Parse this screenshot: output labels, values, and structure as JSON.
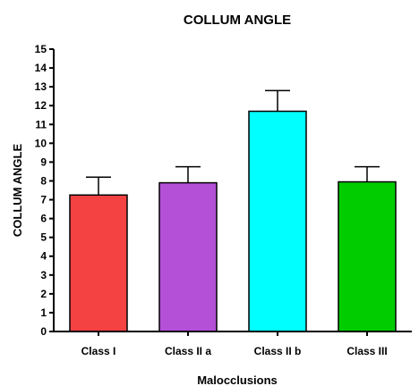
{
  "chart_data": {
    "type": "bar",
    "title": "COLLUM ANGLE",
    "xlabel": "Malocclusions",
    "ylabel": "COLLUM ANGLE",
    "ylim": [
      0,
      15
    ],
    "yticks": [
      0,
      1,
      2,
      3,
      4,
      5,
      6,
      7,
      8,
      9,
      10,
      11,
      12,
      13,
      14,
      15
    ],
    "categories": [
      "Class I",
      "Class II a",
      "Class II b",
      "Class III"
    ],
    "values": [
      7.25,
      7.9,
      11.7,
      7.95
    ],
    "error": [
      0.95,
      0.85,
      1.1,
      0.8
    ],
    "colors": [
      "#f44142",
      "#b450d8",
      "#00ffff",
      "#00cc00"
    ],
    "grid": false,
    "legend": "none"
  }
}
